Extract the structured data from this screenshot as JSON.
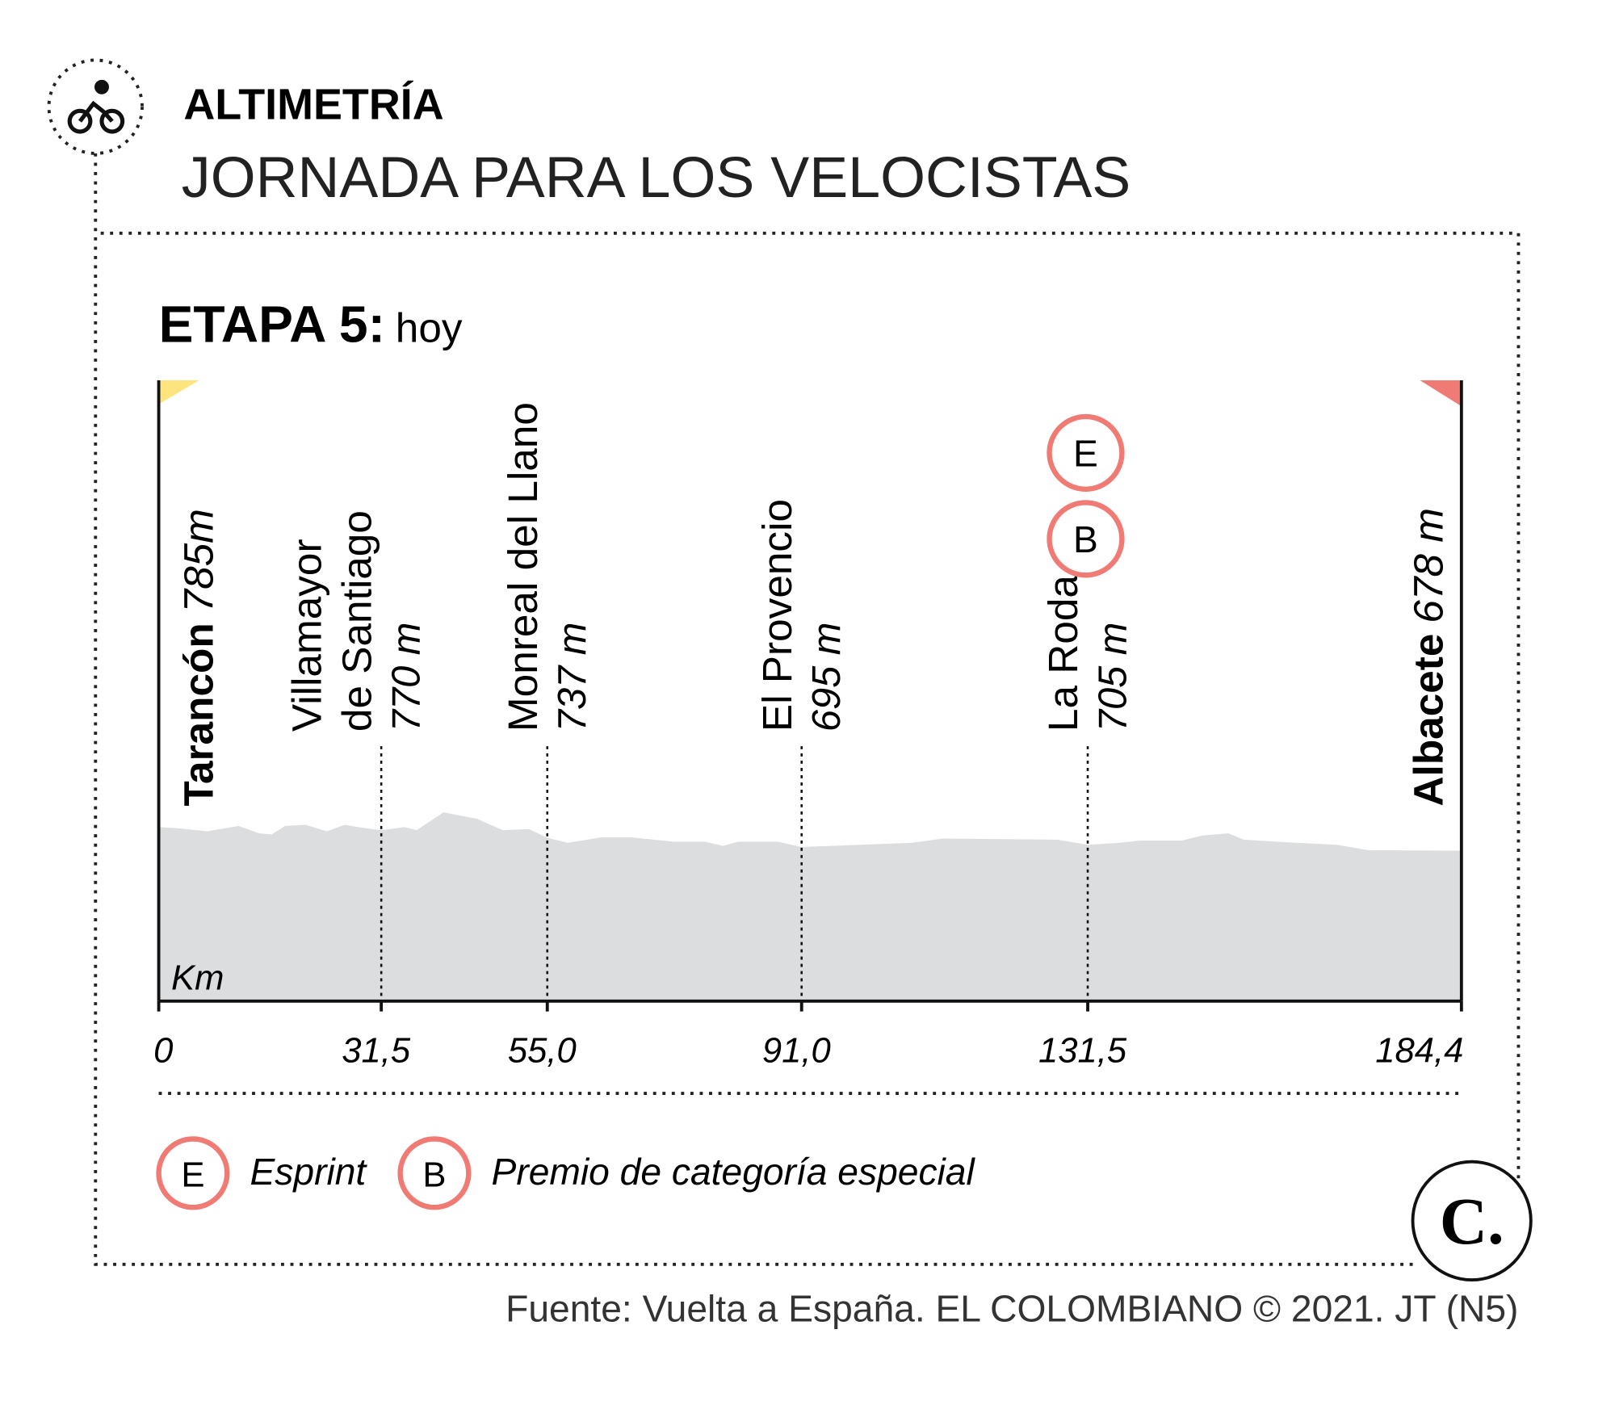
{
  "header": {
    "kicker": "ALTIMETRÍA",
    "title": "JORNADA PARA LOS VELOCISTAS",
    "stage": "ETAPA 5:",
    "stage_day": "hoy"
  },
  "chart_data": {
    "type": "area",
    "color": "#dcdddf",
    "x": [
      0,
      2.5,
      6.9,
      11.3,
      14.2,
      16.0,
      17.9,
      20.8,
      23.8,
      26.3,
      28.2,
      31.5,
      34.8,
      36.5,
      40.3,
      45.0,
      48.7,
      52.4,
      55.0,
      57.9,
      62.6,
      67.0,
      72.9,
      77.3,
      79.9,
      82.0,
      87.6,
      91.0,
      106.6,
      111.0,
      127.2,
      131.5,
      136.0,
      138.9,
      144.8,
      147.7,
      151.4,
      153.6,
      160.9,
      166.8,
      171.2,
      184.4
    ],
    "values": [
      785,
      780,
      766,
      790,
      757,
      752,
      790,
      795,
      766,
      795,
      785,
      770,
      785,
      771,
      851,
      823,
      771,
      776,
      737,
      714,
      738,
      738,
      719,
      719,
      700,
      719,
      719,
      695,
      714,
      733,
      728,
      705,
      714,
      724,
      724,
      747,
      757,
      728,
      714,
      705,
      681,
      678
    ],
    "xlim": [
      0,
      184.4
    ],
    "ylim": [
      0,
      2800
    ],
    "xlabel": "Km",
    "xticks": [
      0,
      {
        "value": 31.5,
        "label": "31,5"
      },
      {
        "value": 55.0,
        "label": "55,0"
      },
      {
        "value": 91.0,
        "label": "91,0"
      },
      {
        "value": 131.5,
        "label": "131,5"
      },
      {
        "value": 184.4,
        "label": "184,4"
      }
    ],
    "stops": [
      {
        "name": [
          "Tarancón"
        ],
        "altitude": "785m",
        "end": true
      },
      {
        "name": [
          "Villamayor",
          "de Santiago"
        ],
        "altitude": "770 m"
      },
      {
        "name": [
          "Monreal del Llano"
        ],
        "altitude": "737 m"
      },
      {
        "name": [
          "El Provencio"
        ],
        "altitude": "695 m"
      },
      {
        "name": [
          "La Roda"
        ],
        "altitude": "705 m",
        "markers": [
          "E",
          "B"
        ]
      },
      {
        "name": [
          "Albacete"
        ],
        "altitude": "678 m",
        "end": true
      }
    ],
    "start_color": "#fde47f",
    "finish_color": "#f07b74",
    "marker_color": "#f07b74",
    "legend": [
      {
        "symbol": "E",
        "label": "Esprint"
      },
      {
        "symbol": "B",
        "label": "Premio de categoría especial"
      }
    ]
  },
  "footer": {
    "source": "Fuente: Vuelta a España. EL COLOMBIANO © 2021. JT (N5)",
    "logo": "C."
  }
}
